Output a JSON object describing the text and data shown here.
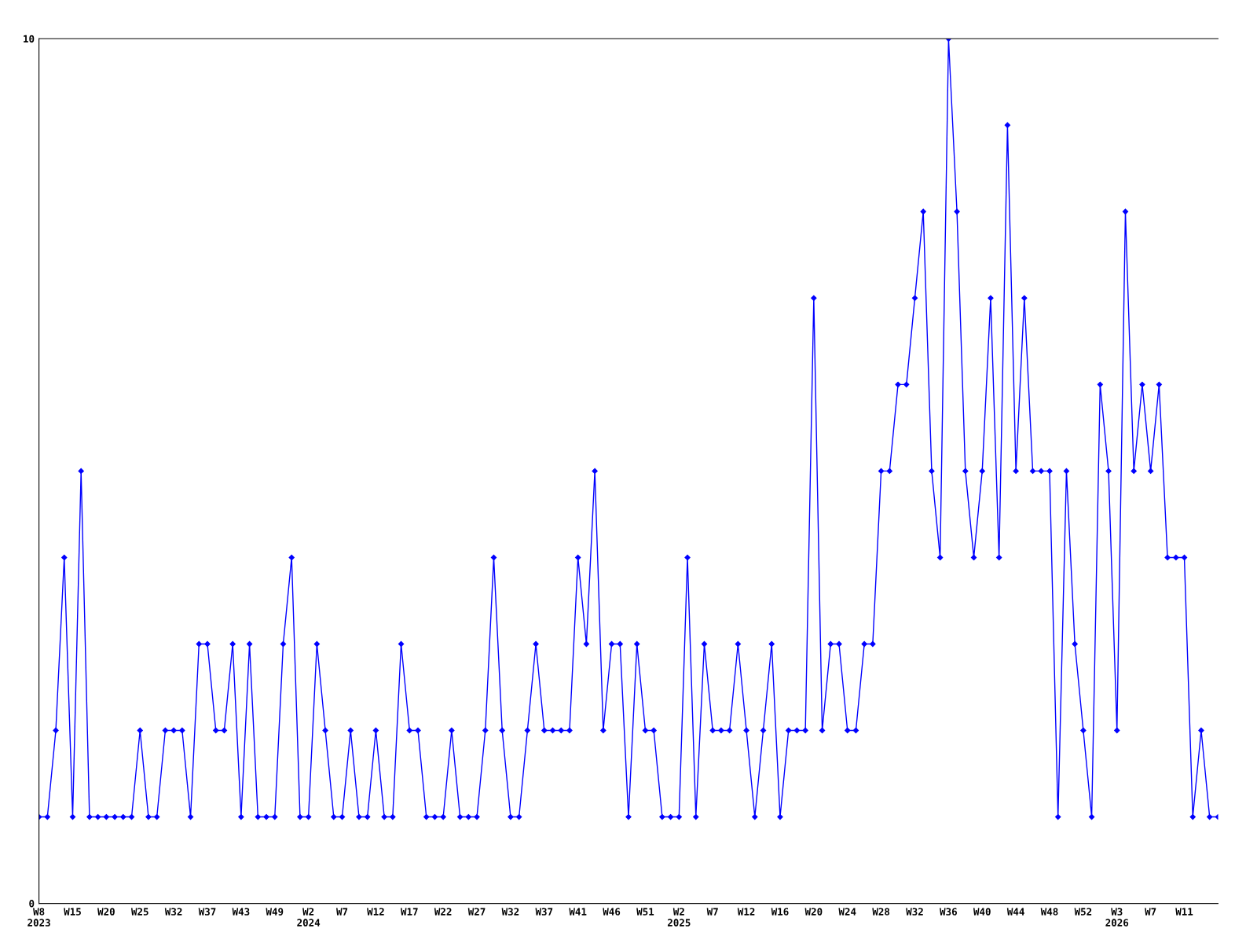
{
  "chart_data": {
    "type": "line",
    "categories": [
      "W8\n2023",
      null,
      null,
      null,
      "W15",
      null,
      null,
      null,
      "W20",
      null,
      null,
      null,
      "W25",
      null,
      null,
      null,
      "W32",
      null,
      null,
      null,
      "W37",
      null,
      null,
      null,
      "W43",
      null,
      null,
      null,
      "W49",
      null,
      null,
      null,
      "W2\n2024",
      null,
      null,
      null,
      "W7",
      null,
      null,
      null,
      "W12",
      null,
      null,
      null,
      "W17",
      null,
      null,
      null,
      "W22",
      null,
      null,
      null,
      "W27",
      null,
      null,
      null,
      "W32",
      null,
      null,
      null,
      "W37",
      null,
      null,
      null,
      "W41",
      null,
      null,
      null,
      "W46",
      null,
      null,
      null,
      "W51",
      null,
      null,
      null,
      "W2\n2025",
      null,
      null,
      null,
      "W7",
      null,
      null,
      null,
      "W12",
      null,
      null,
      null,
      "W16",
      null,
      null,
      null,
      "W20",
      null,
      null,
      null,
      "W24",
      null,
      null,
      null,
      "W28",
      null,
      null,
      null,
      "W32",
      null,
      null,
      null,
      "W36",
      null,
      null,
      null,
      "W40",
      null,
      null,
      null,
      "W44",
      null,
      null,
      null,
      "W48",
      null,
      null,
      null,
      "W52",
      null,
      null,
      null,
      "W3\n2026",
      null,
      null,
      null,
      "W7",
      null,
      null,
      null,
      "W11",
      null,
      null,
      null,
      null
    ],
    "series": [
      {
        "color": "#0000ff",
        "values": [
          1,
          1,
          2,
          4,
          1,
          5,
          1,
          1,
          1,
          1,
          1,
          1,
          2,
          1,
          1,
          2,
          2,
          2,
          1,
          3,
          3,
          2,
          2,
          3,
          1,
          3,
          1,
          1,
          1,
          3,
          4,
          1,
          1,
          3,
          2,
          1,
          1,
          2,
          1,
          1,
          2,
          1,
          1,
          3,
          2,
          2,
          1,
          1,
          1,
          2,
          1,
          1,
          1,
          2,
          4,
          2,
          1,
          1,
          2,
          3,
          2,
          2,
          2,
          2,
          4,
          3,
          5,
          2,
          3,
          3,
          1,
          3,
          2,
          2,
          1,
          1,
          1,
          4,
          1,
          3,
          2,
          2,
          2,
          3,
          2,
          1,
          2,
          3,
          1,
          2,
          2,
          2,
          7,
          2,
          3,
          3,
          2,
          2,
          3,
          3,
          5,
          5,
          6,
          6,
          7,
          8,
          5,
          4,
          10,
          8,
          5,
          4,
          5,
          7,
          4,
          9,
          5,
          7,
          5,
          5,
          5,
          1,
          5,
          3,
          2,
          1,
          6,
          5,
          2,
          8,
          5,
          6,
          5,
          6,
          4,
          4,
          4,
          1,
          2,
          1,
          1
        ]
      }
    ],
    "ylim": [
      0,
      10
    ],
    "yticks": [
      0,
      10
    ],
    "grid": false,
    "marker": "diamond",
    "line_style": "solid"
  }
}
